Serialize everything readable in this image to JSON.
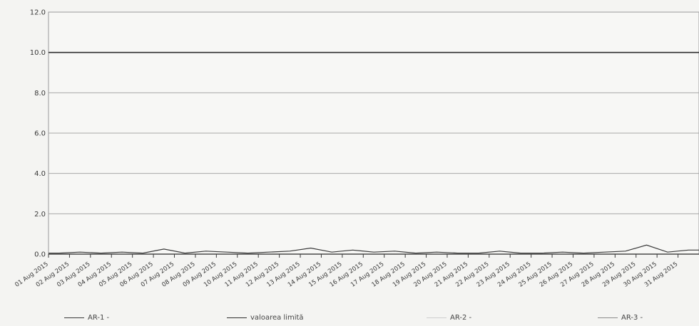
{
  "chart_data": {
    "type": "line",
    "title": "",
    "xlabel": "",
    "ylabel": "",
    "ylim": [
      0,
      12
    ],
    "yticks": [
      "0.0",
      "2.0",
      "4.0",
      "6.0",
      "8.0",
      "10.0",
      "12.0"
    ],
    "x_dates": [
      "01 Aug 2015",
      "02 Aug 2015",
      "03 Aug 2015",
      "04 Aug 2015",
      "05 Aug 2015",
      "06 Aug 2015",
      "07 Aug 2015",
      "08 Aug 2015",
      "09 Aug 2015",
      "10 Aug 2015",
      "11 Aug 2015",
      "12 Aug 2015",
      "13 Aug 2015",
      "14 Aug 2015",
      "15 Aug 2015",
      "16 Aug 2015",
      "17 Aug 2015",
      "18 Aug 2015",
      "19 Aug 2015",
      "20 Aug 2015",
      "21 Aug 2015",
      "22 Aug 2015",
      "23 Aug 2015",
      "24 Aug 2015",
      "25 Aug 2015",
      "26 Aug 2015",
      "27 Aug 2015",
      "28 Aug 2015",
      "29 Aug 2015",
      "30 Aug 2015",
      "31 Aug 2015"
    ],
    "grid": true,
    "legend_position": "bottom",
    "series": [
      {
        "name": "AR-1 -",
        "color": "#3a3a3a",
        "values": [
          0.05,
          0.1,
          0.05,
          0.1,
          0.05,
          0.25,
          0.05,
          0.15,
          0.1,
          0.05,
          0.1,
          0.15,
          0.3,
          0.1,
          0.2,
          0.1,
          0.15,
          0.05,
          0.1,
          0.05,
          0.05,
          0.15,
          0.05,
          0.05,
          0.1,
          0.05,
          0.1,
          0.15,
          0.45,
          0.1,
          0.2
        ]
      },
      {
        "name": "valoarea limită",
        "color": "#2e2e2e",
        "values": [
          10,
          10,
          10,
          10,
          10,
          10,
          10,
          10,
          10,
          10,
          10,
          10,
          10,
          10,
          10,
          10,
          10,
          10,
          10,
          10,
          10,
          10,
          10,
          10,
          10,
          10,
          10,
          10,
          10,
          10,
          10
        ]
      },
      {
        "name": "AR-2 -",
        "color": "#cfcfcf",
        "values": [
          0,
          0,
          0,
          0,
          0,
          0,
          0,
          0,
          0,
          0,
          0,
          0,
          0,
          0,
          0,
          0,
          0,
          0,
          0,
          0,
          0,
          0,
          0,
          0,
          0,
          0,
          0,
          0,
          0,
          0,
          0
        ]
      },
      {
        "name": "AR-3 -",
        "color": "#8a8a8a",
        "values": [
          0,
          0,
          0,
          0,
          0,
          0,
          0,
          0,
          0,
          0,
          0,
          0,
          0,
          0,
          0,
          0,
          0,
          0,
          0,
          0,
          0,
          0,
          0,
          0,
          0,
          0,
          0,
          0,
          0,
          0,
          0
        ]
      }
    ]
  }
}
